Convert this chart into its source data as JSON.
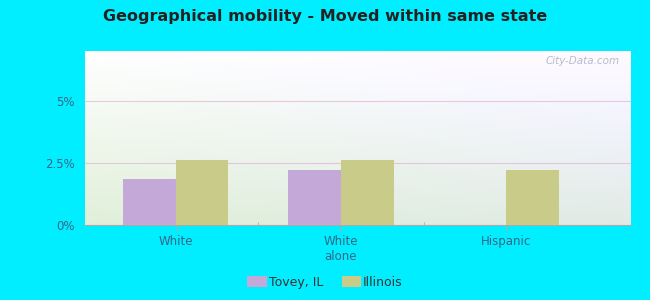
{
  "title": "Geographical mobility - Moved within same state",
  "categories": [
    "White",
    "White\nalone",
    "Hispanic"
  ],
  "tovey_values": [
    1.85,
    2.2,
    0.0
  ],
  "illinois_values": [
    2.6,
    2.6,
    2.2
  ],
  "tovey_color": "#c4a8d8",
  "illinois_color": "#c8cc88",
  "ylim": [
    0,
    7.0
  ],
  "yticks": [
    0,
    2.5,
    5.0
  ],
  "ytick_labels": [
    "0%",
    "2.5%",
    "5%"
  ],
  "background_outer": "#00eeff",
  "watermark": "City-Data.com",
  "legend_tovey": "Tovey, IL",
  "legend_illinois": "Illinois",
  "bar_width": 0.32,
  "gridline_color": "#ddaacc",
  "gridline_alpha": 0.6
}
